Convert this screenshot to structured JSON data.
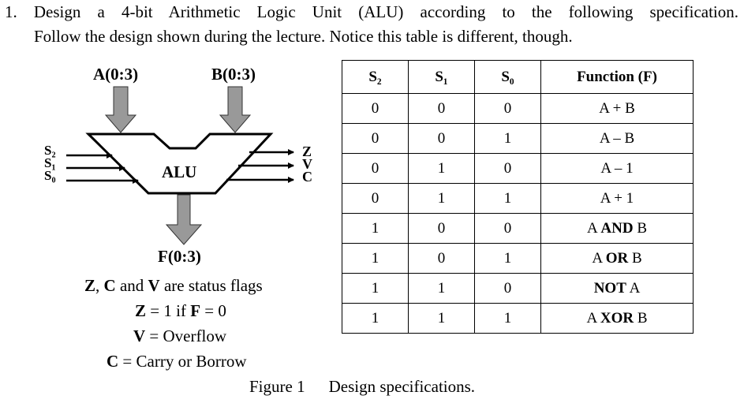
{
  "question": {
    "number": "1.",
    "line1": "Design a 4-bit Arithmetic Logic Unit (ALU) according to the following specification.",
    "line2": "Follow the design shown during the lecture. Notice this table is different, though."
  },
  "diagram": {
    "input_a": "A(0:3)",
    "input_b": "B(0:3)",
    "block_label": "ALU",
    "output_f": "F(0:3)",
    "select_lines": [
      "S₂",
      "S₁",
      "S₀"
    ],
    "status_outputs": [
      "Z",
      "V",
      "C"
    ]
  },
  "status_notes": {
    "line1_parts": [
      "Z",
      ", ",
      "C",
      " and ",
      "V",
      " are status flags"
    ],
    "line2_parts": [
      "Z",
      " = 1 if ",
      "F",
      " = 0"
    ],
    "line3_parts": [
      "V",
      " = Overflow"
    ],
    "line4_parts": [
      "C",
      " = Carry or Borrow"
    ]
  },
  "table": {
    "headers": [
      "S₂",
      "S₁",
      "S₀",
      "Function (F)"
    ],
    "rows": [
      {
        "s2": "0",
        "s1": "0",
        "s0": "0",
        "f": "A + B",
        "f_bold": false
      },
      {
        "s2": "0",
        "s1": "0",
        "s0": "1",
        "f": "A – B",
        "f_bold": false
      },
      {
        "s2": "0",
        "s1": "1",
        "s0": "0",
        "f": "A – 1",
        "f_bold": false
      },
      {
        "s2": "0",
        "s1": "1",
        "s0": "1",
        "f": "A + 1",
        "f_bold": false
      },
      {
        "s2": "1",
        "s1": "0",
        "s0": "0",
        "f_parts": [
          "A ",
          "AND",
          " B"
        ]
      },
      {
        "s2": "1",
        "s1": "0",
        "s0": "1",
        "f_parts": [
          "A ",
          "OR",
          " B"
        ]
      },
      {
        "s2": "1",
        "s1": "1",
        "s0": "0",
        "f_parts": [
          "NOT",
          " A",
          ""
        ]
      },
      {
        "s2": "1",
        "s1": "1",
        "s0": "1",
        "f_parts": [
          "A ",
          "XOR",
          " B"
        ]
      }
    ]
  },
  "caption": {
    "figure": "Figure 1",
    "text": "Design specifications."
  }
}
